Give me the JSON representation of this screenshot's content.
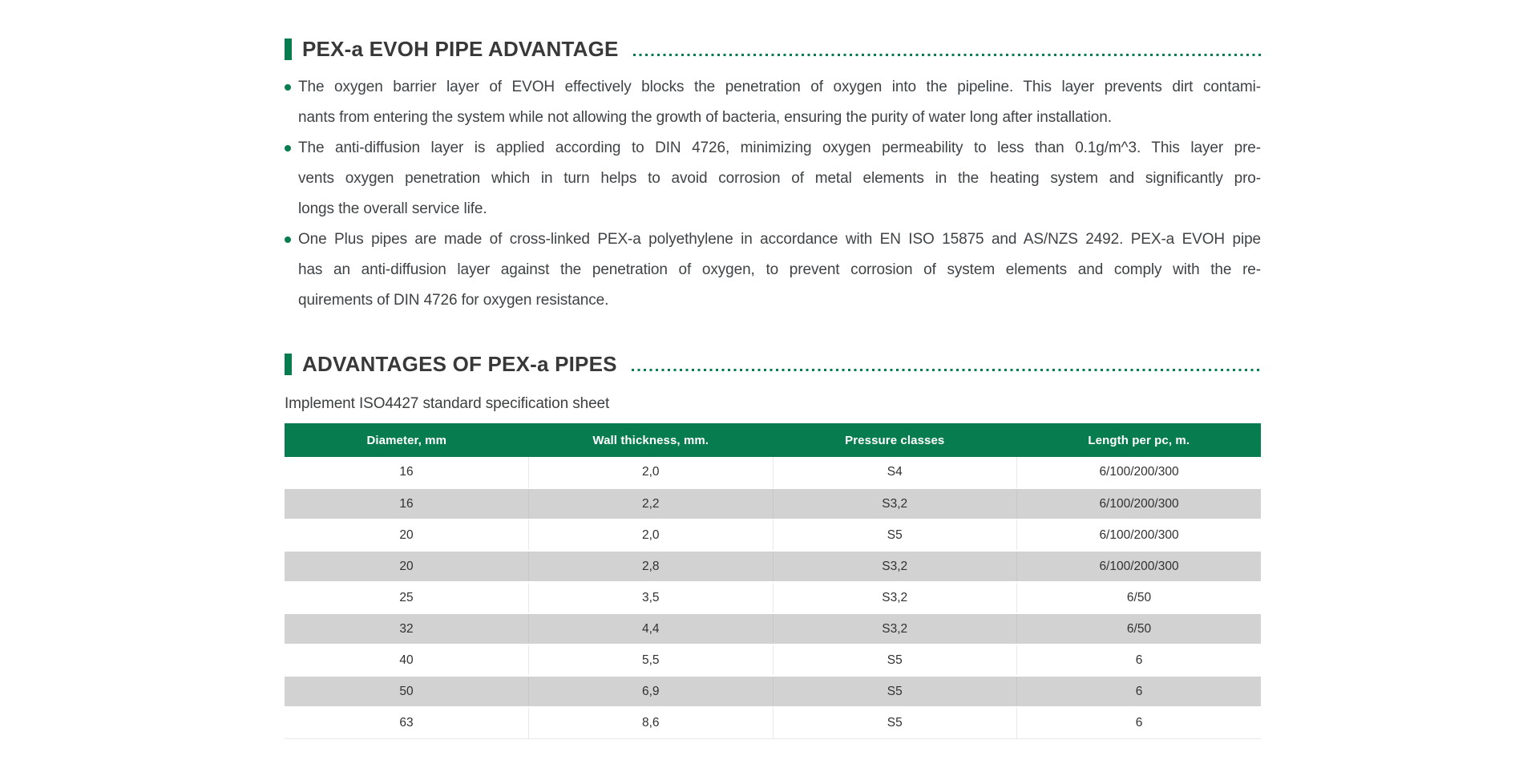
{
  "colors": {
    "accent_green": "#077c4f",
    "row_alt_gray": "#d2d2d2",
    "body_text": "#3f4346",
    "table_header_text": "#ffffff"
  },
  "section_pipe_advantage": {
    "title": "PEX-a EVOH PIPE ADVANTAGE",
    "bullets": [
      {
        "lines": [
          "The oxygen barrier layer of EVOH effectively blocks the penetration of oxygen into the pipeline. This layer prevents dirt contami-",
          "nants from entering the system while not allowing the growth of bacteria, ensuring the purity of water long after installation."
        ]
      },
      {
        "lines": [
          "The anti-diffusion layer is applied according to DIN 4726, minimizing oxygen permeability to less than 0.1g/m^3. This layer pre-",
          "vents oxygen penetration which in turn helps to avoid corrosion of metal elements in the heating system and significantly pro-",
          "longs the overall service life."
        ]
      },
      {
        "lines": [
          "One Plus pipes are made of cross-linked PEX-a polyethylene in accordance with EN ISO 15875 and AS/NZS 2492. PEX-a EVOH pipe",
          "has an anti-diffusion layer against the penetration of oxygen, to prevent corrosion of system elements and comply with the re-",
          "quirements of DIN 4726 for oxygen resistance."
        ]
      }
    ]
  },
  "section_advantages": {
    "title": "ADVANTAGES OF PEX-a PIPES",
    "subtitle": "Implement ISO4427 standard specification sheet",
    "table": {
      "headers": [
        "Diameter, mm",
        "Wall thickness, mm.",
        "Pressure classes",
        "Length per pc, m."
      ],
      "rows": [
        [
          "16",
          "2,0",
          "S4",
          "6/100/200/300"
        ],
        [
          "16",
          "2,2",
          "S3,2",
          "6/100/200/300"
        ],
        [
          "20",
          "2,0",
          "S5",
          "6/100/200/300"
        ],
        [
          "20",
          "2,8",
          "S3,2",
          "6/100/200/300"
        ],
        [
          "25",
          "3,5",
          "S3,2",
          "6/50"
        ],
        [
          "32",
          "4,4",
          "S3,2",
          "6/50"
        ],
        [
          "40",
          "5,5",
          "S5",
          "6"
        ],
        [
          "50",
          "6,9",
          "S5",
          "6"
        ],
        [
          "63",
          "8,6",
          "S5",
          "6"
        ]
      ]
    }
  }
}
